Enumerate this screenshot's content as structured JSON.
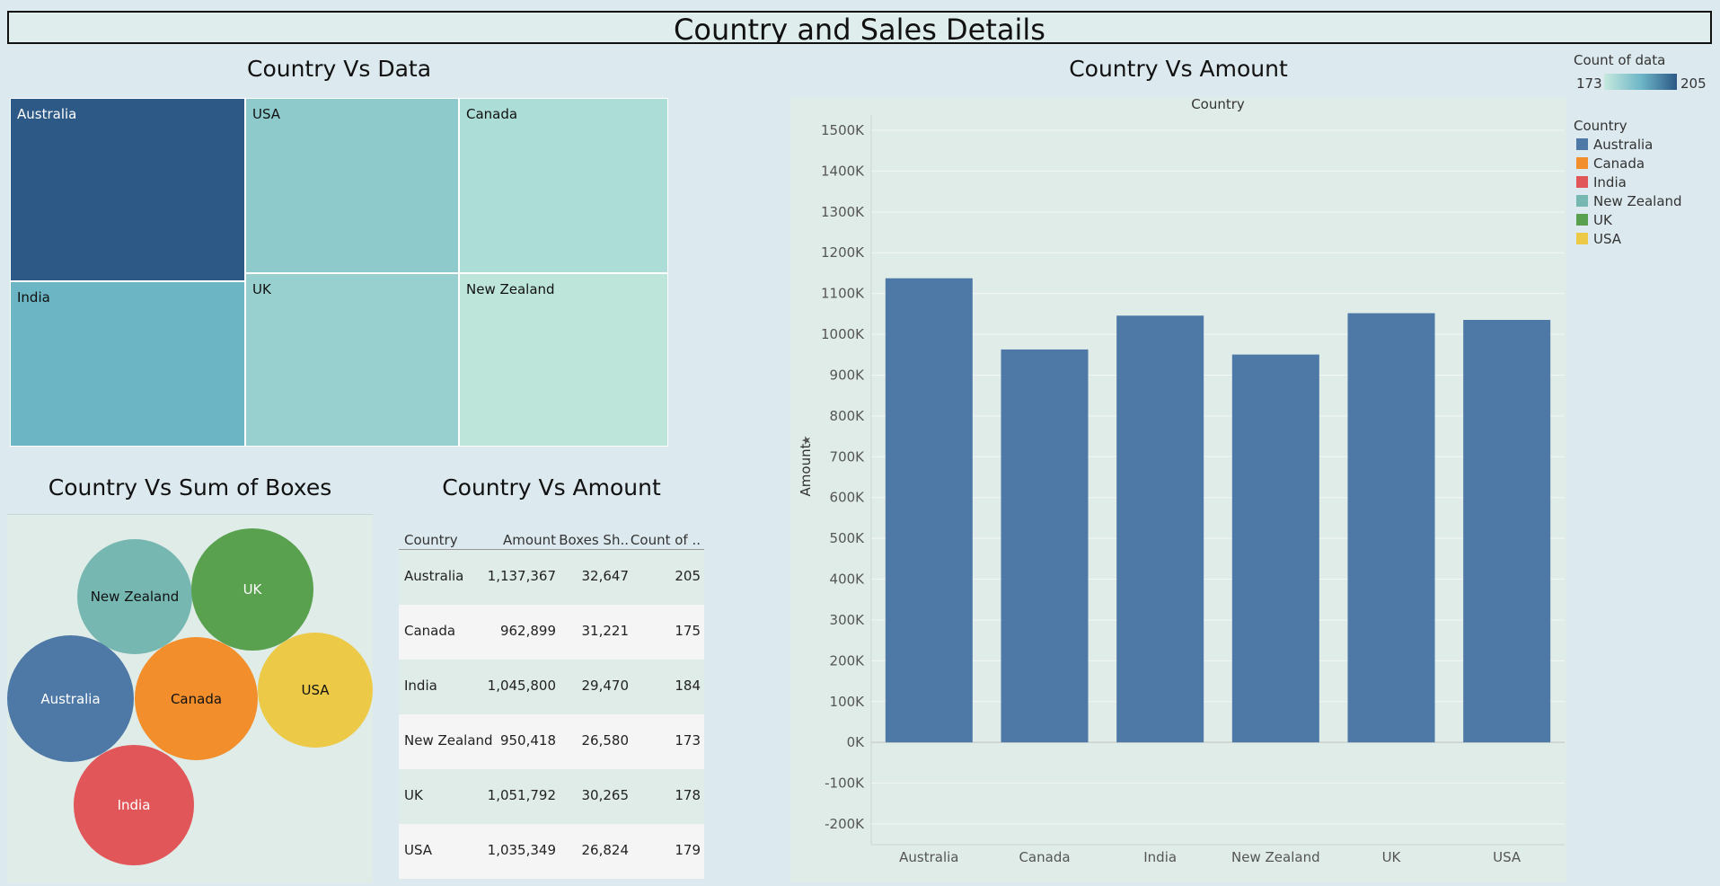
{
  "dashboard": {
    "title": "Country and Sales Details"
  },
  "colors": {
    "Australia": "#4e79a7",
    "Canada": "#f28e2b",
    "India": "#e15759",
    "New Zealand": "#76b7b2",
    "UK": "#59a14f",
    "USA": "#edc948"
  },
  "treemap": {
    "title": "Country Vs Data",
    "cells": [
      {
        "label": "Australia",
        "value": 205,
        "fill": "#2c5986",
        "text_color": "#ffffff"
      },
      {
        "label": "India",
        "value": 184,
        "fill": "#6bb5c4",
        "text_color": "#111111"
      },
      {
        "label": "USA",
        "value": 179,
        "fill": "#8ecacc",
        "text_color": "#111111"
      },
      {
        "label": "UK",
        "value": 178,
        "fill": "#98d0cf",
        "text_color": "#111111"
      },
      {
        "label": "Canada",
        "value": 175,
        "fill": "#acddd6",
        "text_color": "#111111"
      },
      {
        "label": "New Zealand",
        "value": 173,
        "fill": "#bee5d9",
        "text_color": "#111111"
      }
    ]
  },
  "bubbles": {
    "title": "Country Vs Sum of Boxes",
    "items": [
      {
        "label": "New Zealand",
        "boxes": 26580,
        "text_color": "#111111"
      },
      {
        "label": "UK",
        "boxes": 30265,
        "text_color": "#ffffff"
      },
      {
        "label": "Australia",
        "boxes": 32647,
        "text_color": "#ffffff"
      },
      {
        "label": "Canada",
        "boxes": 31221,
        "text_color": "#111111"
      },
      {
        "label": "USA",
        "boxes": 26824,
        "text_color": "#111111"
      },
      {
        "label": "India",
        "boxes": 29470,
        "text_color": "#ffffff"
      }
    ]
  },
  "table": {
    "title": "Country Vs Amount",
    "headers": {
      "country": "Country",
      "amount": "Amount",
      "boxes": "Boxes Sh..",
      "count": "Count of .."
    },
    "rows": [
      {
        "country": "Australia",
        "amount": "1,137,367",
        "boxes": "32,647",
        "count": "205"
      },
      {
        "country": "Canada",
        "amount": "962,899",
        "boxes": "31,221",
        "count": "175"
      },
      {
        "country": "India",
        "amount": "1,045,800",
        "boxes": "29,470",
        "count": "184"
      },
      {
        "country": "New Zealand",
        "amount": "950,418",
        "boxes": "26,580",
        "count": "173"
      },
      {
        "country": "UK",
        "amount": "1,051,792",
        "boxes": "30,265",
        "count": "178"
      },
      {
        "country": "USA",
        "amount": "1,035,349",
        "boxes": "26,824",
        "count": "179"
      }
    ]
  },
  "bar_panel": {
    "title": "Country Vs Amount",
    "column_header": "Country"
  },
  "legend": {
    "count_title": "Count of data",
    "count_min": "173",
    "count_max": "205",
    "country_title": "Country",
    "items": [
      "Australia",
      "Canada",
      "India",
      "New Zealand",
      "UK",
      "USA"
    ]
  },
  "chart_data": {
    "type": "bar",
    "title": "Country Vs Amount",
    "xlabel": "",
    "ylabel": "Amount",
    "categories": [
      "Australia",
      "Canada",
      "India",
      "New Zealand",
      "UK",
      "USA"
    ],
    "values": [
      1137367,
      962899,
      1045800,
      950418,
      1051792,
      1035349
    ],
    "ylim": [
      -200000,
      1500000
    ],
    "yticks": [
      -200000,
      -100000,
      0,
      100000,
      200000,
      300000,
      400000,
      500000,
      600000,
      700000,
      800000,
      900000,
      1000000,
      1100000,
      1200000,
      1300000,
      1400000,
      1500000
    ],
    "ytick_labels": [
      "-200K",
      "-100K",
      "0K",
      "100K",
      "200K",
      "300K",
      "400K",
      "500K",
      "600K",
      "700K",
      "800K",
      "900K",
      "1000K",
      "1100K",
      "1200K",
      "1300K",
      "1400K",
      "1500K"
    ],
    "bar_color": "#4e79a7",
    "grid": true
  }
}
